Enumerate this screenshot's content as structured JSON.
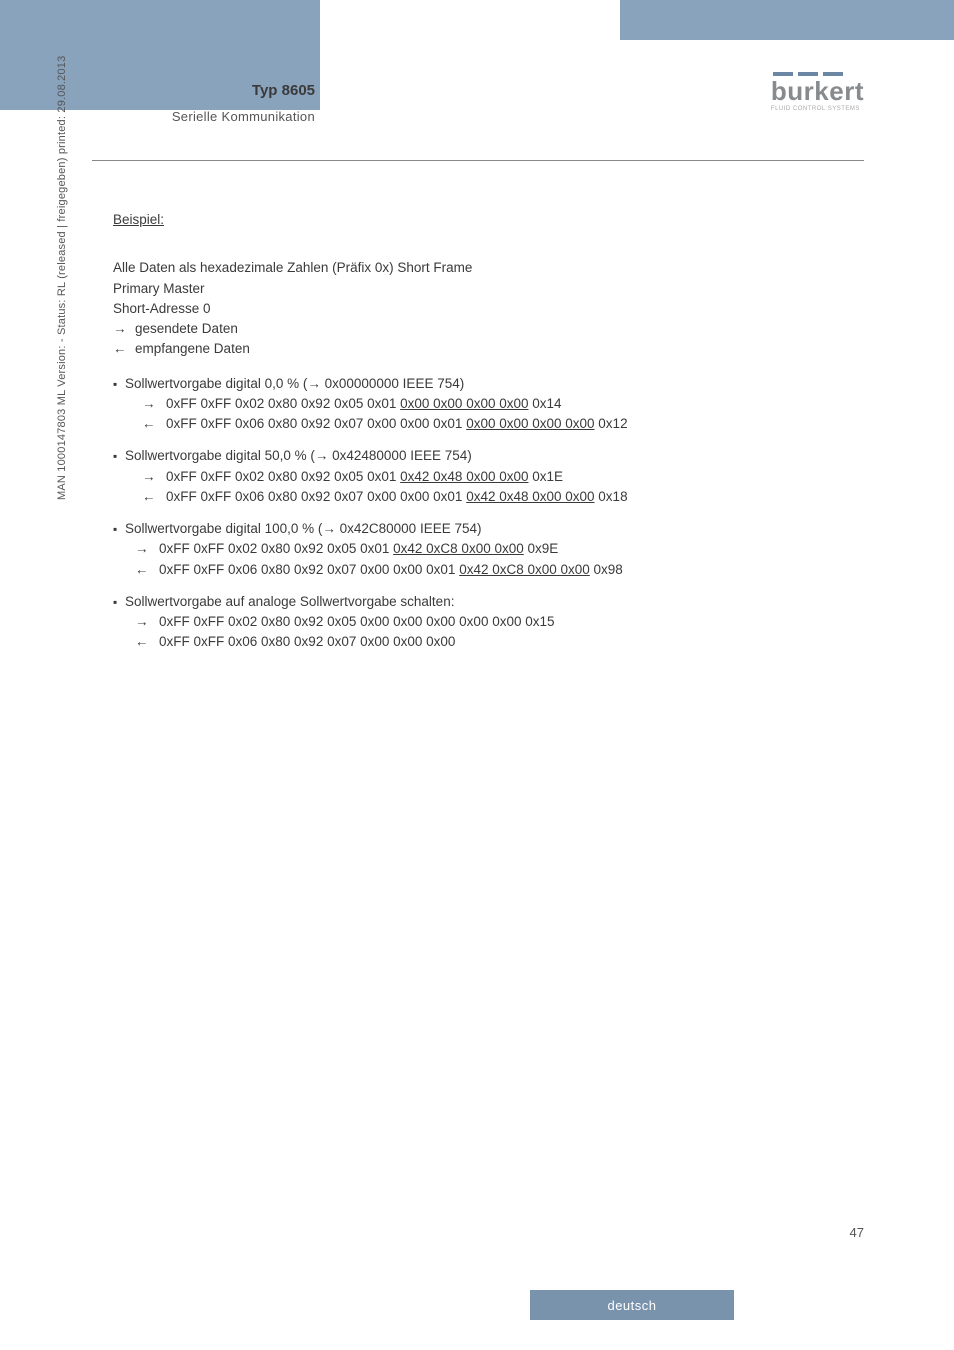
{
  "header": {
    "type_title": "Typ 8605",
    "subtitle": "Serielle Kommunikation",
    "logo_name": "burkert",
    "logo_tagline": "FLUID CONTROL SYSTEMS",
    "logo_bar_color": "#6b87a4"
  },
  "content": {
    "beispiel_label": "Beispiel:",
    "intro_line1": "Alle Daten als hexadezimale Zahlen (Präfix 0x) Short Frame",
    "intro_line2": "Primary Master",
    "intro_line3": "Short-Adresse 0",
    "legend_sent": "gesendete Daten",
    "legend_recv": "empfangene Daten",
    "examples": [
      {
        "title_pre": "Sollwertvorgabe digital 0,0 % (",
        "title_hex": "0x00000000 IEEE 754)",
        "sent_pre": "0xFF 0xFF 0x02 0x80 0x92 0x05 0x01 ",
        "sent_underlined": "0x00 0x00 0x00 0x00",
        "sent_post": " 0x14",
        "recv_pre": "0xFF 0xFF 0x06 0x80 0x92 0x07 0x00 0x00 0x01 ",
        "recv_underlined": "0x00 0x00 0x00 0x00",
        "recv_post": " 0x12",
        "indent_extra": true
      },
      {
        "title_pre": "Sollwertvorgabe digital 50,0 % (",
        "title_hex": "0x42480000 IEEE 754)",
        "sent_pre": "0xFF 0xFF 0x02 0x80 0x92 0x05 0x01 ",
        "sent_underlined": "0x42 0x48 0x00 0x00",
        "sent_post": " 0x1E",
        "recv_pre": "0xFF 0xFF 0x06 0x80 0x92 0x07 0x00 0x00 0x01 ",
        "recv_underlined": "0x42 0x48 0x00 0x00",
        "recv_post": " 0x18",
        "indent_extra": true
      },
      {
        "title_pre": "Sollwertvorgabe digital 100,0 % (",
        "title_hex": "0x42C80000 IEEE 754)",
        "sent_pre": "0xFF 0xFF 0x02 0x80 0x92 0x05 0x01 ",
        "sent_underlined": "0x42 0xC8 0x00 0x00",
        "sent_post": " 0x9E",
        "recv_pre": "0xFF 0xFF 0x06 0x80 0x92 0x07 0x00 0x00 0x01 ",
        "recv_underlined": "0x42 0xC8 0x00 0x00",
        "recv_post": " 0x98",
        "indent_extra": false
      }
    ],
    "analog_title": "Sollwertvorgabe auf analoge Sollwertvorgabe schalten:",
    "analog_sent": "0xFF 0xFF 0x02 0x80 0x92 0x05 0x00 0x00 0x00 0x00 0x00 0x15",
    "analog_recv": "0xFF  0xFF  0x06  0x80  0x92  0x07  0x00  0x00  0x00"
  },
  "sidebar_text": "MAN 1000147803 ML Version: -  Status: RL (released | freigegeben)  printed: 29.08.2013",
  "page_number": "47",
  "footer_lang": "deutsch",
  "arrows": {
    "right": "→",
    "left": "←"
  }
}
